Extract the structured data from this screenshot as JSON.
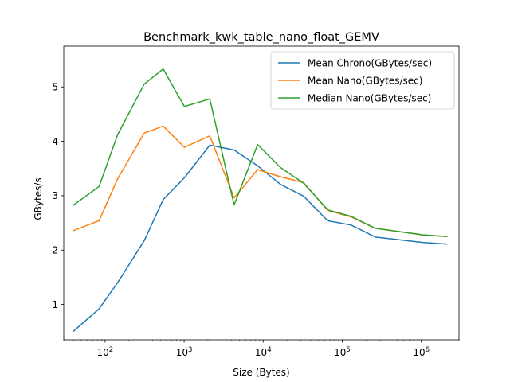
{
  "chart_data": {
    "type": "line",
    "title": "Benchmark_kwk_table_nano_float_GEMV",
    "xlabel": "Size (Bytes)",
    "ylabel": "GBytes/s",
    "xscale": "log",
    "xlim": [
      30,
      3000000
    ],
    "ylim": [
      0.35,
      5.75
    ],
    "xticks": [
      {
        "value": 100,
        "base": "10",
        "exp": "2"
      },
      {
        "value": 1000,
        "base": "10",
        "exp": "3"
      },
      {
        "value": 10000,
        "base": "10",
        "exp": "4"
      },
      {
        "value": 100000,
        "base": "10",
        "exp": "5"
      },
      {
        "value": 1000000,
        "base": "10",
        "exp": "6"
      }
    ],
    "yticks": [
      1,
      2,
      3,
      4,
      5
    ],
    "grid": false,
    "legend_position": "top-right",
    "x": [
      40,
      84,
      144,
      312,
      544,
      1008,
      2112,
      4288,
      8512,
      16512,
      32544,
      65536,
      129600,
      262144,
      524288,
      1048576,
      2097152
    ],
    "series": [
      {
        "name": "Mean Chrono(GBytes/sec)",
        "color": "#1f77b4",
        "values": [
          0.51,
          0.92,
          1.4,
          2.17,
          2.93,
          3.33,
          3.93,
          3.84,
          3.55,
          3.21,
          2.99,
          2.54,
          2.46,
          2.24,
          2.19,
          2.14,
          2.11
        ]
      },
      {
        "name": "Mean Nano(GBytes/sec)",
        "color": "#ff7f0e",
        "values": [
          2.36,
          2.54,
          3.31,
          4.15,
          4.28,
          3.89,
          4.1,
          2.96,
          3.48,
          3.35,
          3.24,
          2.73,
          2.61,
          2.4,
          2.34,
          2.28,
          2.25
        ]
      },
      {
        "name": "Median Nano(GBytes/sec)",
        "color": "#2ca02c",
        "values": [
          2.83,
          3.17,
          4.12,
          5.05,
          5.33,
          4.64,
          4.78,
          2.83,
          3.94,
          3.52,
          3.23,
          2.74,
          2.62,
          2.4,
          2.34,
          2.28,
          2.25
        ]
      }
    ]
  }
}
